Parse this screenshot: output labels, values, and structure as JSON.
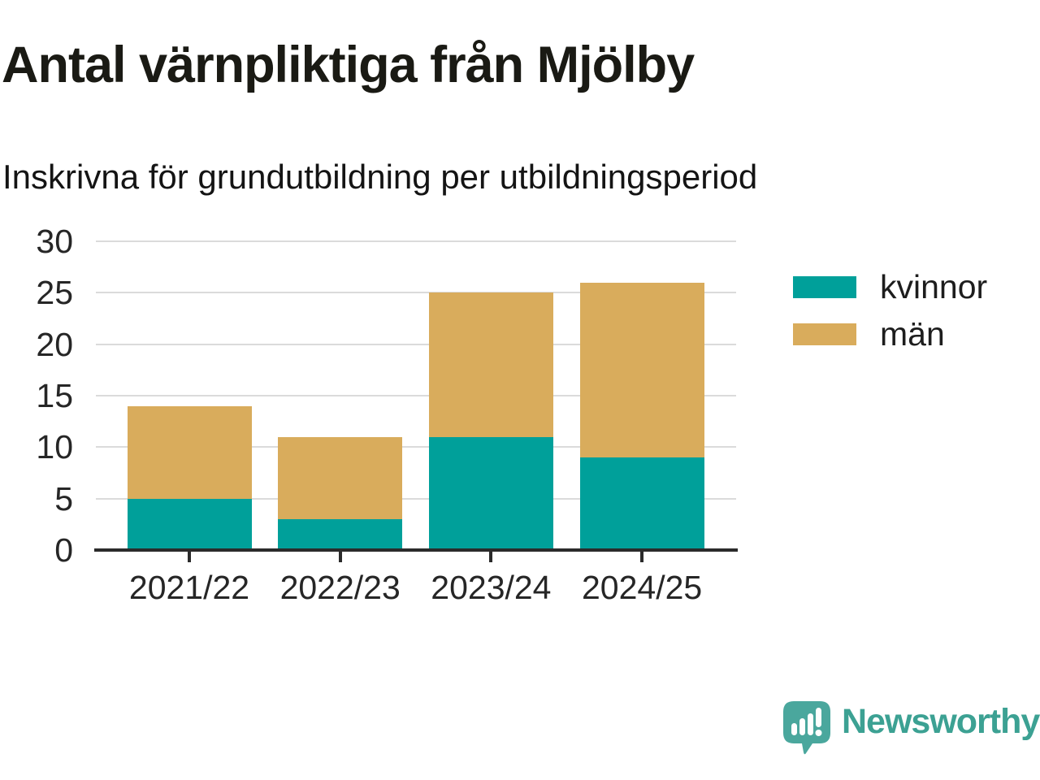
{
  "title": "Antal värnpliktiga från Mjölby",
  "subtitle": "Inskrivna för grundutbildning per utbildningsperiod",
  "footer": {
    "brand": "Newsworthy"
  },
  "colors": {
    "kvinnor": "#00A09A",
    "man": "#D9AC5C",
    "grid": "#DBDBDB",
    "axis": "#2B2B2B",
    "background": "#FFFFFF",
    "brand_bubble": "#4AA79D",
    "brand_text": "#3CA193"
  },
  "chart_data": {
    "type": "bar",
    "stacked": true,
    "title": "Antal värnpliktiga från Mjölby",
    "subtitle": "Inskrivna för grundutbildning per utbildningsperiod",
    "categories": [
      "2021/22",
      "2022/23",
      "2023/24",
      "2024/25"
    ],
    "series": [
      {
        "name": "kvinnor",
        "color": "#00A09A",
        "values": [
          5,
          3,
          11,
          9
        ]
      },
      {
        "name": "män",
        "color": "#D9AC5C",
        "values": [
          9,
          8,
          14,
          17
        ]
      }
    ],
    "stack_totals": [
      14,
      11,
      25,
      26
    ],
    "xlabel": "",
    "ylabel": "",
    "ylim": [
      0,
      30
    ],
    "yticks": [
      0,
      5,
      10,
      15,
      20,
      25,
      30
    ],
    "grid": true,
    "legend_position": "right"
  },
  "legend": {
    "items": [
      {
        "label": "kvinnor"
      },
      {
        "label": "män"
      }
    ]
  }
}
